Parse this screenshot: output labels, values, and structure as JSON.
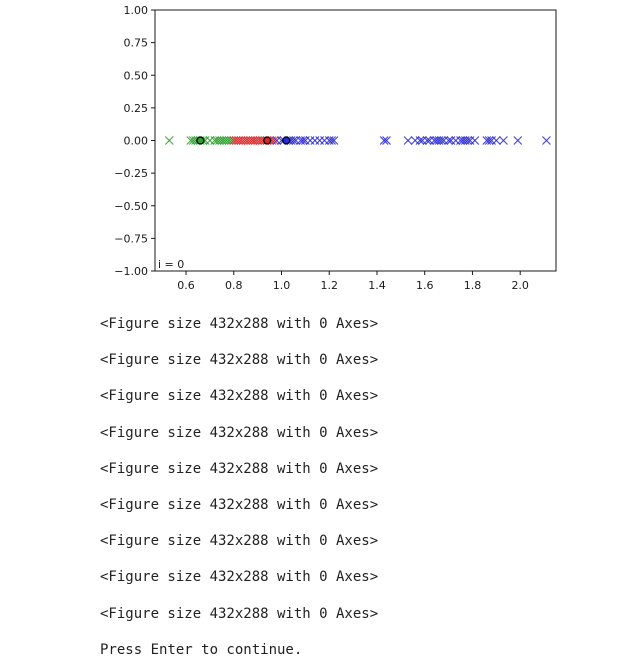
{
  "chart_data": {
    "type": "scatter",
    "xlim": [
      0.47,
      2.15
    ],
    "ylim": [
      -1.0,
      1.0
    ],
    "x_ticks": [
      0.6,
      0.8,
      1.0,
      1.2,
      1.4,
      1.6,
      1.8,
      2.0
    ],
    "x_tick_labels": [
      "0.6",
      "0.8",
      "1.0",
      "1.2",
      "1.4",
      "1.6",
      "1.8",
      "2.0"
    ],
    "y_ticks": [
      1.0,
      0.75,
      0.5,
      0.25,
      0.0,
      -0.25,
      -0.5,
      -0.75,
      -1.0
    ],
    "y_tick_labels": [
      "1.00",
      "0.75",
      "0.50",
      "0.25",
      "0.00",
      "−0.25",
      "−0.50",
      "−0.75",
      "−1.00"
    ],
    "grid": false,
    "legend": "none",
    "annotation": "i = 0",
    "series": [
      {
        "color": "#2ca02c",
        "marker": "x",
        "x": [
          0.53,
          0.62,
          0.63,
          0.64,
          0.65,
          0.66,
          0.67,
          0.68,
          0.7,
          0.72,
          0.73,
          0.74,
          0.75,
          0.76,
          0.77,
          0.78,
          0.79
        ],
        "y": [
          0,
          0,
          0,
          0,
          0,
          0,
          0,
          0,
          0,
          0,
          0,
          0,
          0,
          0,
          0,
          0,
          0
        ]
      },
      {
        "color": "#d62728",
        "marker": "x",
        "x": [
          0.8,
          0.81,
          0.82,
          0.83,
          0.84,
          0.85,
          0.86,
          0.87,
          0.88,
          0.89,
          0.9,
          0.91,
          0.92,
          0.93,
          0.94,
          0.95,
          0.96,
          0.97
        ],
        "y": [
          0,
          0,
          0,
          0,
          0,
          0,
          0,
          0,
          0,
          0,
          0,
          0,
          0,
          0,
          0,
          0,
          0,
          0
        ]
      },
      {
        "color": "#2b2bd4",
        "marker": "x",
        "x": [
          0.98,
          1.0,
          1.01,
          1.03,
          1.04,
          1.05,
          1.06,
          1.08,
          1.09,
          1.1,
          1.12,
          1.14,
          1.16,
          1.18,
          1.2,
          1.21,
          1.22,
          1.43,
          1.44,
          1.53,
          1.56,
          1.58,
          1.59,
          1.61,
          1.62,
          1.64,
          1.65,
          1.66,
          1.67,
          1.68,
          1.7,
          1.71,
          1.73,
          1.75,
          1.76,
          1.77,
          1.78,
          1.79,
          1.81,
          1.86,
          1.87,
          1.88,
          1.9,
          1.93,
          1.99,
          2.11
        ],
        "y": [
          0,
          0,
          0,
          0,
          0,
          0,
          0,
          0,
          0,
          0,
          0,
          0,
          0,
          0,
          0,
          0,
          0,
          0,
          0,
          0,
          0,
          0,
          0,
          0,
          0,
          0,
          0,
          0,
          0,
          0,
          0,
          0,
          0,
          0,
          0,
          0,
          0,
          0,
          0,
          0,
          0,
          0,
          0,
          0,
          0,
          0
        ]
      }
    ],
    "centroids": [
      {
        "x": 0.66,
        "y": 0,
        "color": "#2ca02c"
      },
      {
        "x": 0.94,
        "y": 0,
        "color": "#d62728"
      },
      {
        "x": 1.02,
        "y": 0,
        "color": "#2b2bd4"
      }
    ]
  },
  "output": {
    "lines": [
      "<Figure size 432x288 with 0 Axes>",
      "<Figure size 432x288 with 0 Axes>",
      "<Figure size 432x288 with 0 Axes>",
      "<Figure size 432x288 with 0 Axes>",
      "<Figure size 432x288 with 0 Axes>",
      "<Figure size 432x288 with 0 Axes>",
      "<Figure size 432x288 with 0 Axes>",
      "<Figure size 432x288 with 0 Axes>",
      "<Figure size 432x288 with 0 Axes>"
    ],
    "prompt": "Press Enter to continue."
  }
}
